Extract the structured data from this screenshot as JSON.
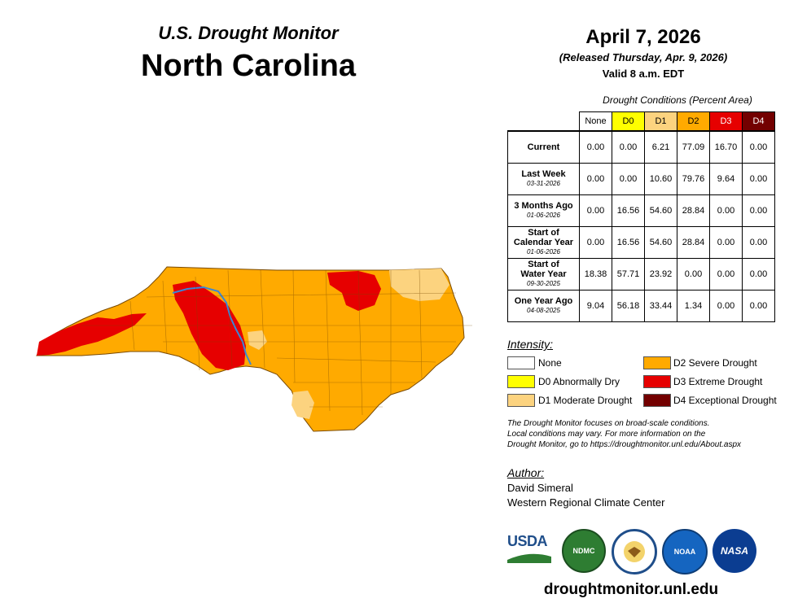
{
  "header": {
    "brand": "U.S. Drought Monitor",
    "state": "North Carolina",
    "date": "April 7, 2026",
    "released": "(Released Thursday, Apr. 9, 2026)",
    "valid": "Valid 8 a.m. EDT"
  },
  "table": {
    "caption": "Drought Conditions (Percent Area)",
    "columns": [
      {
        "label": "None",
        "color": "#ffffff",
        "text_color": "#000000"
      },
      {
        "label": "D0",
        "color": "#ffff00",
        "text_color": "#000000"
      },
      {
        "label": "D1",
        "color": "#fcd37f",
        "text_color": "#000000"
      },
      {
        "label": "D2",
        "color": "#ffaa00",
        "text_color": "#000000"
      },
      {
        "label": "D3",
        "color": "#e60000",
        "text_color": "#ffffff"
      },
      {
        "label": "D4",
        "color": "#730000",
        "text_color": "#ffffff"
      }
    ],
    "rows": [
      {
        "label1": "Current",
        "label2": "",
        "date": "",
        "values": [
          "0.00",
          "0.00",
          "6.21",
          "77.09",
          "16.70",
          "0.00"
        ]
      },
      {
        "label1": "Last Week",
        "label2": "",
        "date": "03-31-2026",
        "values": [
          "0.00",
          "0.00",
          "10.60",
          "79.76",
          "9.64",
          "0.00"
        ]
      },
      {
        "label1": "3 Months Ago",
        "label2": "",
        "date": "01-06-2026",
        "values": [
          "0.00",
          "16.56",
          "54.60",
          "28.84",
          "0.00",
          "0.00"
        ]
      },
      {
        "label1": "Start of",
        "label2": "Calendar Year",
        "date": "01-06-2026",
        "values": [
          "0.00",
          "16.56",
          "54.60",
          "28.84",
          "0.00",
          "0.00"
        ]
      },
      {
        "label1": "Start of",
        "label2": "Water Year",
        "date": "09-30-2025",
        "values": [
          "18.38",
          "57.71",
          "23.92",
          "0.00",
          "0.00",
          "0.00"
        ]
      },
      {
        "label1": "One Year Ago",
        "label2": "",
        "date": "04-08-2025",
        "values": [
          "9.04",
          "56.18",
          "33.44",
          "1.34",
          "0.00",
          "0.00"
        ]
      }
    ]
  },
  "intensity": {
    "title": "Intensity:",
    "items": [
      {
        "label": "None",
        "color": "#ffffff"
      },
      {
        "label": "D0 Abnormally Dry",
        "color": "#ffff00"
      },
      {
        "label": "D1 Moderate Drought",
        "color": "#fcd37f"
      },
      {
        "label": "D2 Severe Drought",
        "color": "#ffaa00"
      },
      {
        "label": "D3 Extreme Drought",
        "color": "#e60000"
      },
      {
        "label": "D4 Exceptional Drought",
        "color": "#730000"
      }
    ]
  },
  "note": [
    "The Drought Monitor focuses on broad-scale conditions.",
    "Local conditions may vary. For more information on the",
    "Drought Monitor, go to https://droughtmonitor.unl.edu/About.aspx"
  ],
  "author": {
    "title": "Author:",
    "name": "David Simeral",
    "org": "Western Regional Climate Center"
  },
  "logos": {
    "usda": "USDA",
    "ndmc": "NDMC",
    "noaa": "NOAA",
    "nasa": "NASA"
  },
  "site": "droughtmonitor.unl.edu",
  "map": {
    "colors": {
      "d1": "#fcd37f",
      "d2": "#ffaa00",
      "d3": "#e60000",
      "river": "#3a87d6",
      "border": "#7a4a00"
    }
  }
}
